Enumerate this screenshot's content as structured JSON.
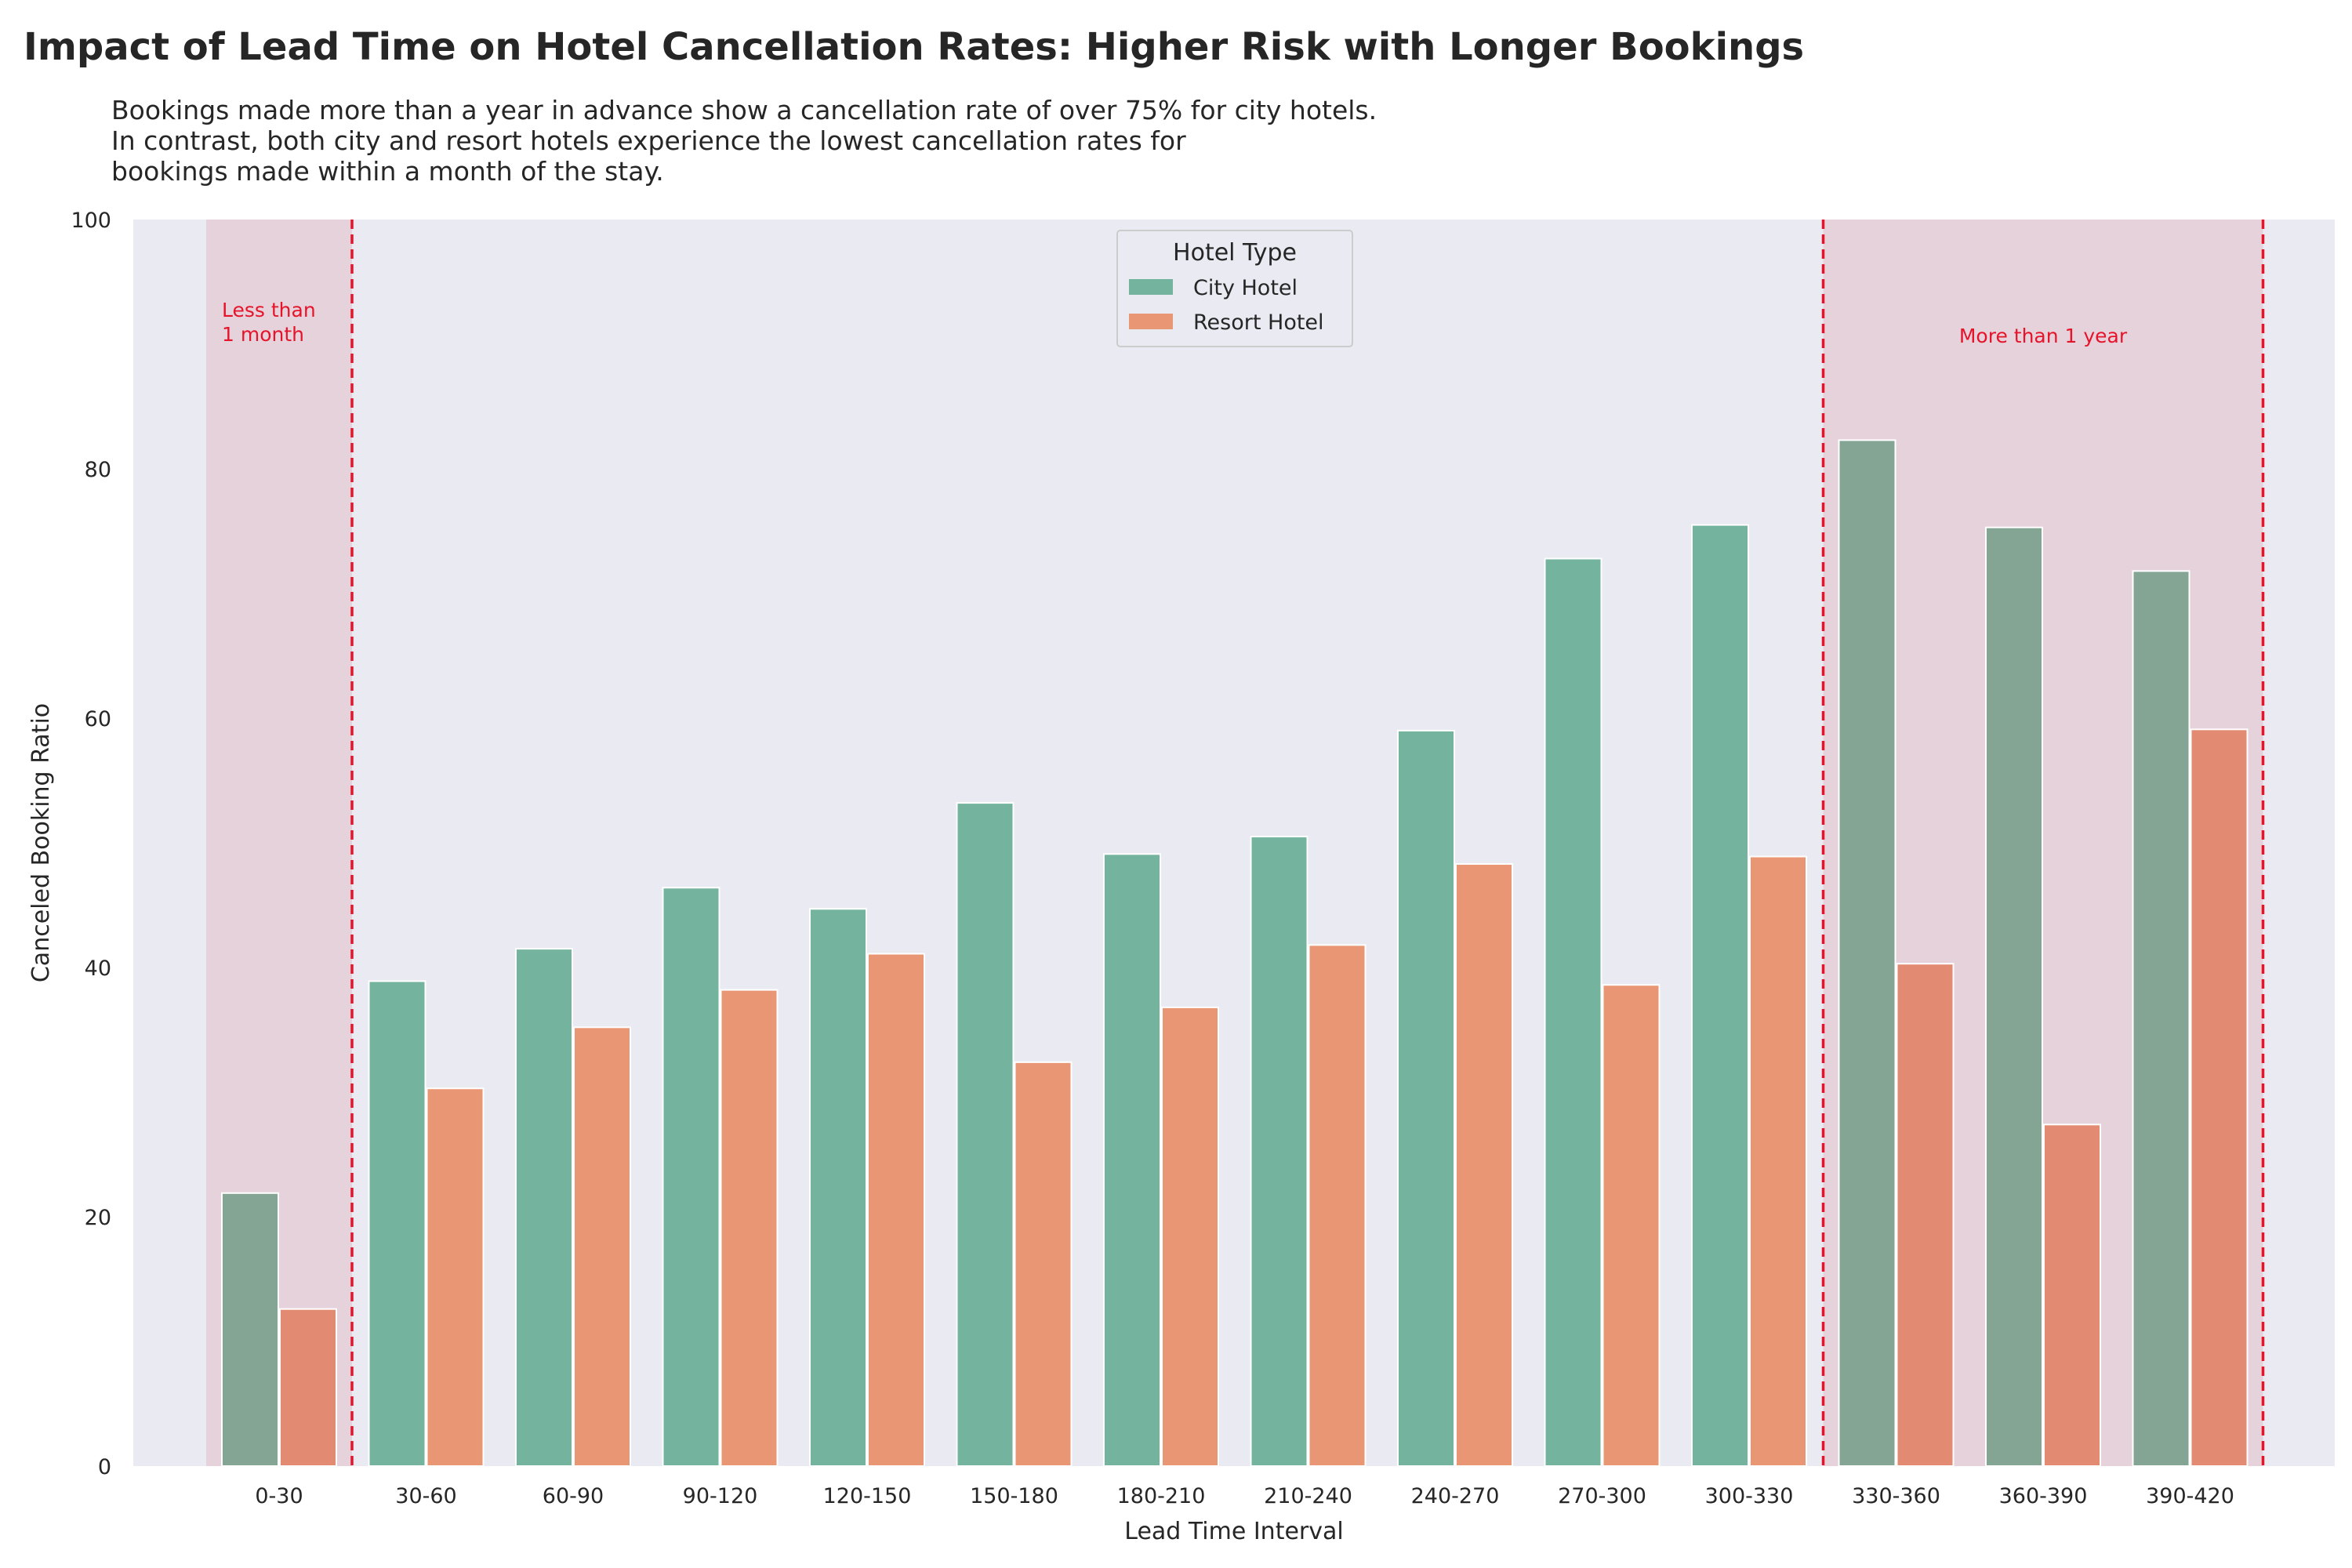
{
  "chart_data": {
    "type": "bar",
    "title": "Impact of Lead Time on Hotel Cancellation Rates: Higher Risk with Longer Bookings",
    "subtitle_lines": [
      "Bookings made more than a year in advance show a cancellation rate of over 75% for city hotels.",
      "In contrast, both city and resort hotels experience the lowest cancellation rates for",
      "bookings made within a month of the stay."
    ],
    "xlabel": "Lead Time Interval",
    "ylabel": "Canceled Booking Ratio",
    "ylim": [
      0,
      100
    ],
    "yticks": [
      0,
      20,
      40,
      60,
      80,
      100
    ],
    "grid": false,
    "legend": {
      "title": "Hotel Type",
      "position": "top-center"
    },
    "categories": [
      "0-30",
      "30-60",
      "60-90",
      "90-120",
      "120-150",
      "150-180",
      "180-210",
      "210-240",
      "240-270",
      "270-300",
      "300-330",
      "330-360",
      "360-390",
      "390-420"
    ],
    "series": [
      {
        "name": "City Hotel",
        "color": "#74b49f",
        "values": [
          21.9,
          38.9,
          41.5,
          46.4,
          44.7,
          53.2,
          49.1,
          50.5,
          59.0,
          72.8,
          75.5,
          82.3,
          75.3,
          71.8
        ]
      },
      {
        "name": "Resort Hotel",
        "color": "#e99675",
        "values": [
          12.6,
          30.3,
          35.2,
          38.2,
          41.1,
          32.4,
          36.8,
          41.8,
          48.3,
          38.6,
          48.9,
          40.3,
          27.4,
          59.1
        ]
      }
    ],
    "highlights": [
      {
        "label": "Less than\n1 month",
        "from_category": 0,
        "to_category": 0,
        "color": "#e6142a"
      },
      {
        "label": "More than 1 year",
        "from_category": 11,
        "to_category": 13,
        "color": "#e6142a"
      }
    ]
  }
}
